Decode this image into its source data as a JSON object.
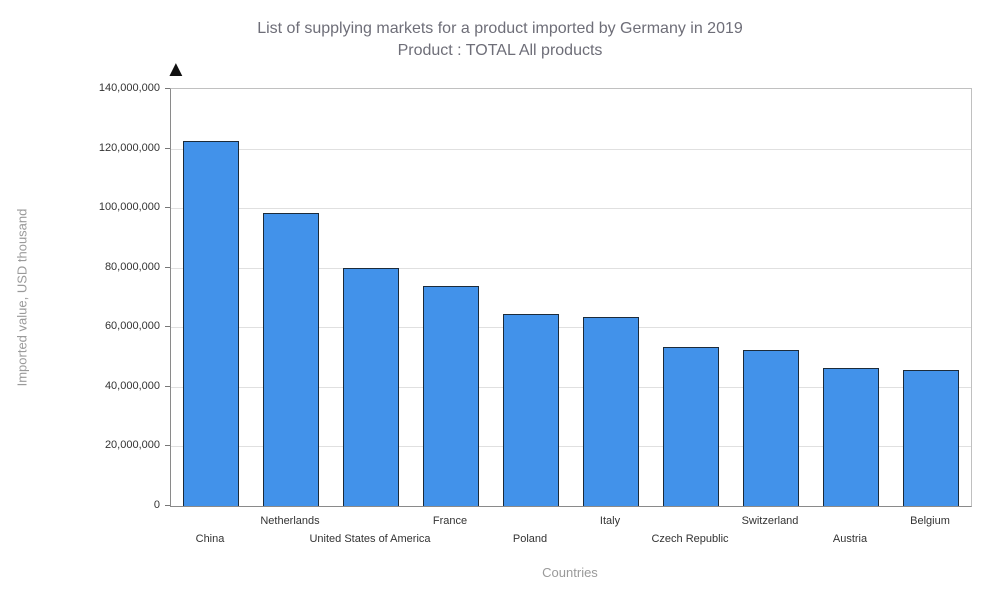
{
  "header": {
    "title_line1": "List of supplying markets for a product imported by Germany in 2019",
    "title_line2": "Product : TOTAL All products",
    "marker_glyph": "▲"
  },
  "chart_data": {
    "type": "bar",
    "title": "List of supplying markets for a product imported by Germany in 2019 — Product : TOTAL All products",
    "xlabel": "Countries",
    "ylabel": "Imported value, USD thousand",
    "categories": [
      "China",
      "Netherlands",
      "United States of America",
      "France",
      "Poland",
      "Italy",
      "Czech Republic",
      "Switzerland",
      "Austria",
      "Belgium"
    ],
    "values": [
      122500000,
      98500000,
      80000000,
      74000000,
      64500000,
      63500000,
      53500000,
      52300000,
      46300000,
      45800000
    ],
    "ylim": [
      0,
      140000000
    ],
    "ytick_step": 20000000,
    "grid": true,
    "legend": "none",
    "bar_color": "#4292ea",
    "bar_border": "#1c2b3a"
  }
}
